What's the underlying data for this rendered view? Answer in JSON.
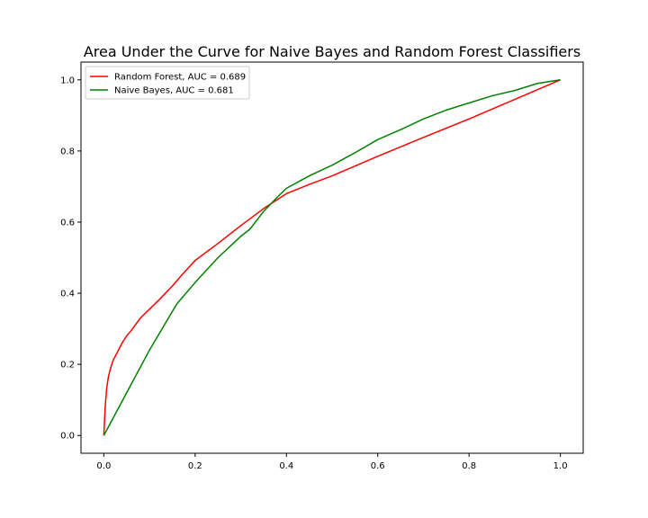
{
  "chart_data": {
    "type": "line",
    "title": "Area Under the Curve for Naive Bayes and Random Forest Classifiers",
    "xlabel": "",
    "ylabel": "",
    "xlim": [
      -0.05,
      1.05
    ],
    "ylim": [
      -0.05,
      1.05
    ],
    "xticks": [
      "0.0",
      "0.2",
      "0.4",
      "0.6",
      "0.8",
      "1.0"
    ],
    "yticks": [
      "0.0",
      "0.2",
      "0.4",
      "0.6",
      "0.8",
      "1.0"
    ],
    "grid": false,
    "legend_position": "upper-left",
    "series": [
      {
        "name": "Random Forest, AUC = 0.689",
        "color": "#ff0000",
        "x": [
          0.0,
          0.003,
          0.006,
          0.01,
          0.015,
          0.02,
          0.03,
          0.04,
          0.05,
          0.06,
          0.08,
          0.1,
          0.12,
          0.15,
          0.17,
          0.2,
          0.25,
          0.3,
          0.35,
          0.4,
          0.45,
          0.5,
          0.6,
          0.7,
          0.8,
          0.9,
          1.0
        ],
        "y": [
          0.0,
          0.08,
          0.13,
          0.165,
          0.19,
          0.21,
          0.235,
          0.26,
          0.28,
          0.295,
          0.33,
          0.355,
          0.38,
          0.42,
          0.45,
          0.492,
          0.54,
          0.59,
          0.638,
          0.68,
          0.706,
          0.73,
          0.785,
          0.838,
          0.89,
          0.945,
          1.0
        ]
      },
      {
        "name": "Naive Bayes, AUC = 0.681",
        "color": "#008000",
        "x": [
          0.0,
          0.05,
          0.1,
          0.16,
          0.2,
          0.25,
          0.3,
          0.32,
          0.35,
          0.38,
          0.4,
          0.45,
          0.5,
          0.55,
          0.6,
          0.65,
          0.7,
          0.75,
          0.8,
          0.85,
          0.9,
          0.95,
          1.0
        ],
        "y": [
          0.0,
          0.12,
          0.24,
          0.37,
          0.43,
          0.5,
          0.56,
          0.58,
          0.63,
          0.67,
          0.695,
          0.73,
          0.76,
          0.795,
          0.832,
          0.86,
          0.89,
          0.915,
          0.935,
          0.955,
          0.97,
          0.99,
          1.0
        ]
      }
    ]
  }
}
